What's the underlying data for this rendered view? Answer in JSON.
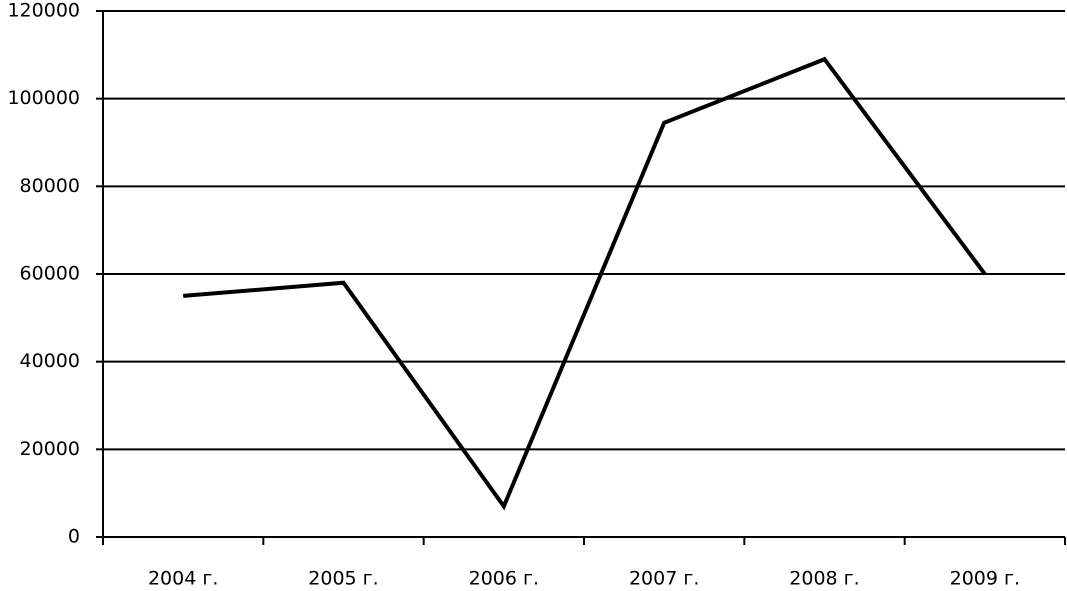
{
  "chart_data": {
    "type": "line",
    "categories": [
      "2004 г.",
      "2005 г.",
      "2006 г.",
      "2007 г.",
      "2008 г.",
      "2009 г."
    ],
    "series": [
      {
        "color": "#000000",
        "values": [
          55000,
          58000,
          7000,
          94500,
          109000,
          60000
        ]
      }
    ],
    "ylim": [
      0,
      120000
    ],
    "yticks": [
      0,
      20000,
      40000,
      60000,
      80000,
      100000,
      120000
    ],
    "grid": true
  }
}
